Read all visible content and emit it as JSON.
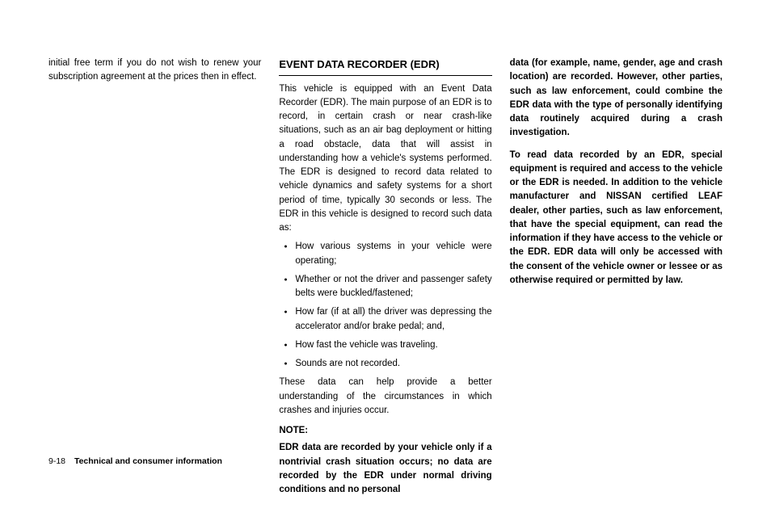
{
  "col1": {
    "p1": "initial free term if you do not wish to renew your subscription agreement at the prices then in effect."
  },
  "col2": {
    "heading": "EVENT DATA RECORDER (EDR)",
    "p1": "This vehicle is equipped with an Event Data Recorder (EDR). The main purpose of an EDR is to record, in certain crash or near crash-like situations, such as an air bag deployment or hitting a road obstacle, data that will assist in understanding how a vehicle's systems performed. The EDR is designed to record data related to vehicle dynamics and safety systems for a short period of time, typically 30 seconds or less. The EDR in this vehicle is designed to record such data as:",
    "bullets": [
      "How various systems in your vehicle were operating;",
      "Whether or not the driver and passenger safety belts were buckled/fastened;",
      "How far (if at all) the driver was depressing the accelerator and/or brake pedal; and,",
      "How fast the vehicle was traveling.",
      "Sounds are not recorded."
    ],
    "p2": "These data can help provide a better understanding of the circumstances in which crashes and injuries occur.",
    "note_label": "NOTE:",
    "note_p": "EDR data are recorded by your vehicle only if a nontrivial crash situation occurs; no data are recorded by the EDR under normal driving conditions and no personal"
  },
  "col3": {
    "p1": "data (for example, name, gender, age and crash location) are recorded. However, other parties, such as law enforcement, could combine the EDR data with the type of personally identifying data routinely acquired during a crash investigation.",
    "p2": "To read data recorded by an EDR, special equipment is required and access to the vehicle or the EDR is needed. In addition to the vehicle manufacturer and NISSAN certified LEAF dealer, other parties, such as law enforcement, that have the special equipment, can read the information if they have access to the vehicle or the EDR. EDR data will only be accessed with the consent of the vehicle owner or lessee or as otherwise required or permitted by law."
  },
  "footer": {
    "page_num": "9-18",
    "section": "Technical and consumer information"
  }
}
